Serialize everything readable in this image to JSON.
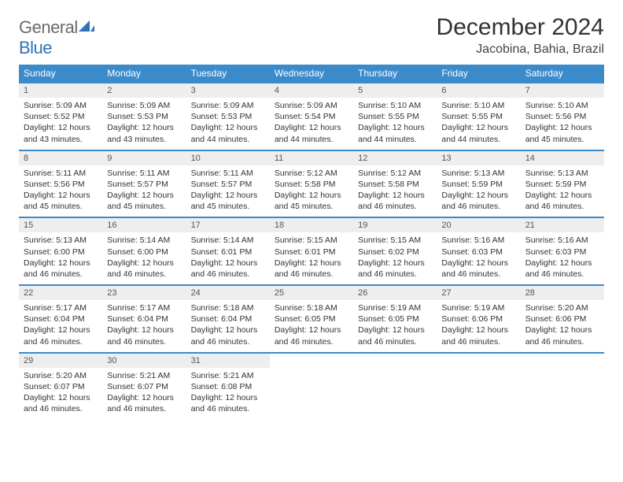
{
  "logo": {
    "word1": "General",
    "word2": "Blue"
  },
  "title": "December 2024",
  "location": "Jacobina, Bahia, Brazil",
  "colors": {
    "header_bg": "#3b8bcb",
    "header_text": "#ffffff",
    "daynum_bg": "#eeeeee",
    "border": "#3b8bcb",
    "logo_gray": "#6b6b6b",
    "logo_blue": "#2f72b8"
  },
  "weekdays": [
    "Sunday",
    "Monday",
    "Tuesday",
    "Wednesday",
    "Thursday",
    "Friday",
    "Saturday"
  ],
  "weeks": [
    {
      "nums": [
        "1",
        "2",
        "3",
        "4",
        "5",
        "6",
        "7"
      ],
      "cells": [
        {
          "sunrise": "Sunrise: 5:09 AM",
          "sunset": "Sunset: 5:52 PM",
          "day1": "Daylight: 12 hours",
          "day2": "and 43 minutes."
        },
        {
          "sunrise": "Sunrise: 5:09 AM",
          "sunset": "Sunset: 5:53 PM",
          "day1": "Daylight: 12 hours",
          "day2": "and 43 minutes."
        },
        {
          "sunrise": "Sunrise: 5:09 AM",
          "sunset": "Sunset: 5:53 PM",
          "day1": "Daylight: 12 hours",
          "day2": "and 44 minutes."
        },
        {
          "sunrise": "Sunrise: 5:09 AM",
          "sunset": "Sunset: 5:54 PM",
          "day1": "Daylight: 12 hours",
          "day2": "and 44 minutes."
        },
        {
          "sunrise": "Sunrise: 5:10 AM",
          "sunset": "Sunset: 5:55 PM",
          "day1": "Daylight: 12 hours",
          "day2": "and 44 minutes."
        },
        {
          "sunrise": "Sunrise: 5:10 AM",
          "sunset": "Sunset: 5:55 PM",
          "day1": "Daylight: 12 hours",
          "day2": "and 44 minutes."
        },
        {
          "sunrise": "Sunrise: 5:10 AM",
          "sunset": "Sunset: 5:56 PM",
          "day1": "Daylight: 12 hours",
          "day2": "and 45 minutes."
        }
      ]
    },
    {
      "nums": [
        "8",
        "9",
        "10",
        "11",
        "12",
        "13",
        "14"
      ],
      "cells": [
        {
          "sunrise": "Sunrise: 5:11 AM",
          "sunset": "Sunset: 5:56 PM",
          "day1": "Daylight: 12 hours",
          "day2": "and 45 minutes."
        },
        {
          "sunrise": "Sunrise: 5:11 AM",
          "sunset": "Sunset: 5:57 PM",
          "day1": "Daylight: 12 hours",
          "day2": "and 45 minutes."
        },
        {
          "sunrise": "Sunrise: 5:11 AM",
          "sunset": "Sunset: 5:57 PM",
          "day1": "Daylight: 12 hours",
          "day2": "and 45 minutes."
        },
        {
          "sunrise": "Sunrise: 5:12 AM",
          "sunset": "Sunset: 5:58 PM",
          "day1": "Daylight: 12 hours",
          "day2": "and 45 minutes."
        },
        {
          "sunrise": "Sunrise: 5:12 AM",
          "sunset": "Sunset: 5:58 PM",
          "day1": "Daylight: 12 hours",
          "day2": "and 46 minutes."
        },
        {
          "sunrise": "Sunrise: 5:13 AM",
          "sunset": "Sunset: 5:59 PM",
          "day1": "Daylight: 12 hours",
          "day2": "and 46 minutes."
        },
        {
          "sunrise": "Sunrise: 5:13 AM",
          "sunset": "Sunset: 5:59 PM",
          "day1": "Daylight: 12 hours",
          "day2": "and 46 minutes."
        }
      ]
    },
    {
      "nums": [
        "15",
        "16",
        "17",
        "18",
        "19",
        "20",
        "21"
      ],
      "cells": [
        {
          "sunrise": "Sunrise: 5:13 AM",
          "sunset": "Sunset: 6:00 PM",
          "day1": "Daylight: 12 hours",
          "day2": "and 46 minutes."
        },
        {
          "sunrise": "Sunrise: 5:14 AM",
          "sunset": "Sunset: 6:00 PM",
          "day1": "Daylight: 12 hours",
          "day2": "and 46 minutes."
        },
        {
          "sunrise": "Sunrise: 5:14 AM",
          "sunset": "Sunset: 6:01 PM",
          "day1": "Daylight: 12 hours",
          "day2": "and 46 minutes."
        },
        {
          "sunrise": "Sunrise: 5:15 AM",
          "sunset": "Sunset: 6:01 PM",
          "day1": "Daylight: 12 hours",
          "day2": "and 46 minutes."
        },
        {
          "sunrise": "Sunrise: 5:15 AM",
          "sunset": "Sunset: 6:02 PM",
          "day1": "Daylight: 12 hours",
          "day2": "and 46 minutes."
        },
        {
          "sunrise": "Sunrise: 5:16 AM",
          "sunset": "Sunset: 6:03 PM",
          "day1": "Daylight: 12 hours",
          "day2": "and 46 minutes."
        },
        {
          "sunrise": "Sunrise: 5:16 AM",
          "sunset": "Sunset: 6:03 PM",
          "day1": "Daylight: 12 hours",
          "day2": "and 46 minutes."
        }
      ]
    },
    {
      "nums": [
        "22",
        "23",
        "24",
        "25",
        "26",
        "27",
        "28"
      ],
      "cells": [
        {
          "sunrise": "Sunrise: 5:17 AM",
          "sunset": "Sunset: 6:04 PM",
          "day1": "Daylight: 12 hours",
          "day2": "and 46 minutes."
        },
        {
          "sunrise": "Sunrise: 5:17 AM",
          "sunset": "Sunset: 6:04 PM",
          "day1": "Daylight: 12 hours",
          "day2": "and 46 minutes."
        },
        {
          "sunrise": "Sunrise: 5:18 AM",
          "sunset": "Sunset: 6:04 PM",
          "day1": "Daylight: 12 hours",
          "day2": "and 46 minutes."
        },
        {
          "sunrise": "Sunrise: 5:18 AM",
          "sunset": "Sunset: 6:05 PM",
          "day1": "Daylight: 12 hours",
          "day2": "and 46 minutes."
        },
        {
          "sunrise": "Sunrise: 5:19 AM",
          "sunset": "Sunset: 6:05 PM",
          "day1": "Daylight: 12 hours",
          "day2": "and 46 minutes."
        },
        {
          "sunrise": "Sunrise: 5:19 AM",
          "sunset": "Sunset: 6:06 PM",
          "day1": "Daylight: 12 hours",
          "day2": "and 46 minutes."
        },
        {
          "sunrise": "Sunrise: 5:20 AM",
          "sunset": "Sunset: 6:06 PM",
          "day1": "Daylight: 12 hours",
          "day2": "and 46 minutes."
        }
      ]
    },
    {
      "nums": [
        "29",
        "30",
        "31",
        "",
        "",
        "",
        ""
      ],
      "cells": [
        {
          "sunrise": "Sunrise: 5:20 AM",
          "sunset": "Sunset: 6:07 PM",
          "day1": "Daylight: 12 hours",
          "day2": "and 46 minutes."
        },
        {
          "sunrise": "Sunrise: 5:21 AM",
          "sunset": "Sunset: 6:07 PM",
          "day1": "Daylight: 12 hours",
          "day2": "and 46 minutes."
        },
        {
          "sunrise": "Sunrise: 5:21 AM",
          "sunset": "Sunset: 6:08 PM",
          "day1": "Daylight: 12 hours",
          "day2": "and 46 minutes."
        },
        null,
        null,
        null,
        null
      ]
    }
  ]
}
